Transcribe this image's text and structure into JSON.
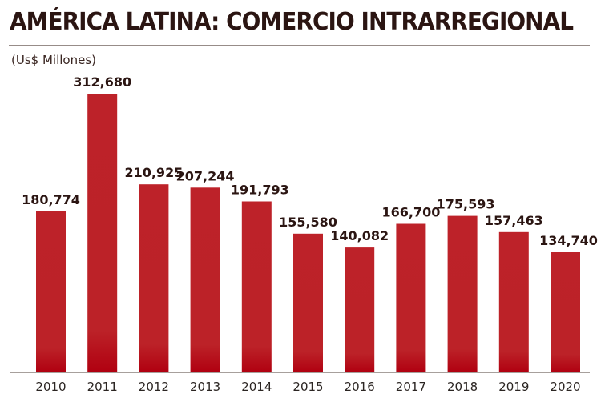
{
  "header": {
    "title": "AMÉRICA LATINA: COMERCIO INTRARREGIONAL",
    "subtitle": "(Us$ Millones)"
  },
  "chart_data": {
    "type": "bar",
    "title": "AMÉRICA LATINA: COMERCIO INTRARREGIONAL",
    "subtitle": "(Us$ Millones)",
    "xlabel": "",
    "ylabel": "Us$ Millones",
    "categories": [
      "2010",
      "2011",
      "2012",
      "2013",
      "2014",
      "2015",
      "2016",
      "2017",
      "2018",
      "2019",
      "2020"
    ],
    "values": [
      180774,
      312680,
      210925,
      207244,
      191793,
      155580,
      140082,
      166700,
      175593,
      157463,
      134740
    ],
    "data_labels": [
      "180,774",
      "312,680",
      "210,925",
      "207,244",
      "191,793",
      "155,580",
      "140,082",
      "166,700",
      "175,593",
      "157,463",
      "134,740"
    ],
    "ylim": [
      0,
      312680
    ],
    "grid": false,
    "legend": "none",
    "colors": {
      "bar": "#bd2229",
      "bar_bottom": "#b30010",
      "axis": "#8a807c",
      "label": "#2b1512"
    }
  }
}
